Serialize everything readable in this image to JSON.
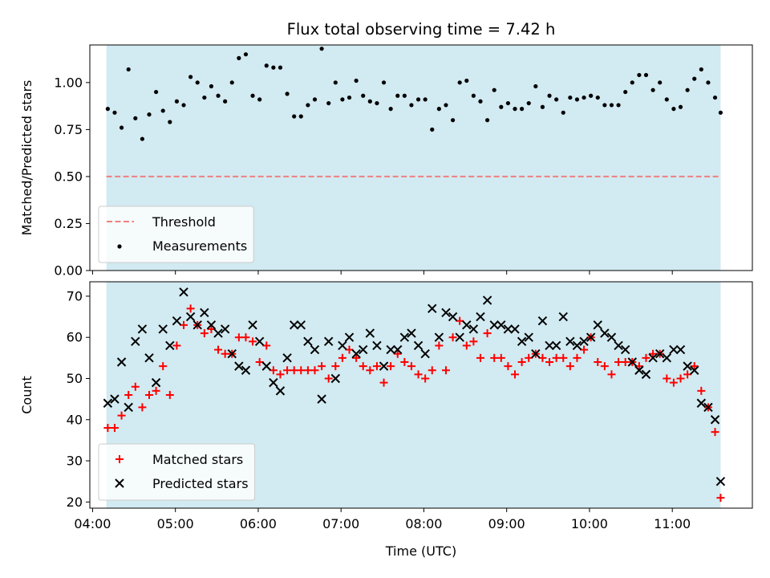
{
  "figure": {
    "title": "Flux total observing time = 7.42 h",
    "shaded_color": "#add8e6"
  },
  "chart_data": [
    {
      "type": "scatter",
      "panel": "top",
      "ylabel": "Matched/Predicted stars",
      "xlabel": "",
      "ylim": [
        0,
        1.2
      ],
      "yticks": [
        "0.00",
        "0.25",
        "0.50",
        "0.75",
        "1.00"
      ],
      "xlim": [
        "03:58",
        "11:58"
      ],
      "shaded_span": [
        "04:10",
        "11:35"
      ],
      "threshold": 0.5,
      "legend": {
        "position": "lower-left",
        "entries": [
          "Threshold",
          "Measurements"
        ]
      },
      "series": [
        {
          "name": "Threshold",
          "style": "dashed-line",
          "color": "#f08080"
        },
        {
          "name": "Measurements",
          "style": "dot",
          "color": "#000000",
          "x": [
            "04:11",
            "04:16",
            "04:21",
            "04:26",
            "04:31",
            "04:36",
            "04:41",
            "04:46",
            "04:51",
            "04:56",
            "05:01",
            "05:06",
            "05:11",
            "05:16",
            "05:21",
            "05:26",
            "05:31",
            "05:36",
            "05:41",
            "05:46",
            "05:51",
            "05:56",
            "06:01",
            "06:06",
            "06:11",
            "06:16",
            "06:21",
            "06:26",
            "06:31",
            "06:36",
            "06:41",
            "06:46",
            "06:51",
            "06:56",
            "07:01",
            "07:06",
            "07:11",
            "07:16",
            "07:21",
            "07:26",
            "07:31",
            "07:36",
            "07:41",
            "07:46",
            "07:51",
            "07:56",
            "08:01",
            "08:06",
            "08:11",
            "08:16",
            "08:21",
            "08:26",
            "08:31",
            "08:36",
            "08:41",
            "08:46",
            "08:51",
            "08:56",
            "09:01",
            "09:06",
            "09:11",
            "09:16",
            "09:21",
            "09:26",
            "09:31",
            "09:36",
            "09:41",
            "09:46",
            "09:51",
            "09:56",
            "10:01",
            "10:06",
            "10:11",
            "10:16",
            "10:21",
            "10:26",
            "10:31",
            "10:36",
            "10:41",
            "10:46",
            "10:51",
            "10:56",
            "11:01",
            "11:06",
            "11:11",
            "11:16",
            "11:21",
            "11:26",
            "11:31",
            "11:35"
          ],
          "values": [
            0.86,
            0.84,
            0.76,
            1.07,
            0.81,
            0.7,
            0.83,
            0.95,
            0.85,
            0.79,
            0.9,
            0.88,
            1.03,
            1.0,
            0.92,
            0.98,
            0.93,
            0.9,
            1.0,
            1.13,
            1.15,
            0.93,
            0.91,
            1.09,
            1.08,
            1.08,
            0.94,
            0.82,
            0.82,
            0.88,
            0.91,
            1.18,
            0.89,
            1.0,
            0.91,
            0.92,
            1.01,
            0.93,
            0.9,
            0.89,
            1.0,
            0.86,
            0.93,
            0.93,
            0.88,
            0.91,
            0.91,
            0.75,
            0.86,
            0.88,
            0.8,
            1.0,
            1.01,
            0.93,
            0.9,
            0.8,
            0.96,
            0.87,
            0.89,
            0.86,
            0.86,
            0.89,
            0.98,
            0.87,
            0.93,
            0.91,
            0.84,
            0.92,
            0.91,
            0.92,
            0.93,
            0.92,
            0.88,
            0.88,
            0.88,
            0.95,
            1.0,
            1.04,
            1.04,
            0.96,
            1.0,
            0.91,
            0.86,
            0.87,
            0.96,
            1.02,
            1.07,
            1.0,
            0.92,
            0.84
          ]
        }
      ]
    },
    {
      "type": "scatter",
      "panel": "bottom",
      "ylabel": "Count",
      "xlabel": "Time (UTC)",
      "ylim": [
        18.5,
        73.5
      ],
      "yticks": [
        "20",
        "30",
        "40",
        "50",
        "60",
        "70"
      ],
      "xlim": [
        "03:58",
        "11:58"
      ],
      "xticks": [
        "04:00",
        "05:00",
        "06:00",
        "07:00",
        "08:00",
        "09:00",
        "10:00",
        "11:00"
      ],
      "shaded_span": [
        "04:10",
        "11:35"
      ],
      "legend": {
        "position": "lower-left",
        "entries": [
          "Matched stars",
          "Predicted stars"
        ]
      },
      "series": [
        {
          "name": "Matched stars",
          "style": "plus",
          "color": "#ff0000",
          "x": [
            "04:11",
            "04:16",
            "04:21",
            "04:26",
            "04:31",
            "04:36",
            "04:41",
            "04:46",
            "04:51",
            "04:56",
            "05:01",
            "05:06",
            "05:11",
            "05:16",
            "05:21",
            "05:26",
            "05:31",
            "05:36",
            "05:41",
            "05:46",
            "05:51",
            "05:56",
            "06:01",
            "06:06",
            "06:11",
            "06:16",
            "06:21",
            "06:26",
            "06:31",
            "06:36",
            "06:41",
            "06:46",
            "06:51",
            "06:56",
            "07:01",
            "07:06",
            "07:11",
            "07:16",
            "07:21",
            "07:26",
            "07:31",
            "07:36",
            "07:41",
            "07:46",
            "07:51",
            "07:56",
            "08:01",
            "08:06",
            "08:11",
            "08:16",
            "08:21",
            "08:26",
            "08:31",
            "08:36",
            "08:41",
            "08:46",
            "08:51",
            "08:56",
            "09:01",
            "09:06",
            "09:11",
            "09:16",
            "09:21",
            "09:26",
            "09:31",
            "09:36",
            "09:41",
            "09:46",
            "09:51",
            "09:56",
            "10:01",
            "10:06",
            "10:11",
            "10:16",
            "10:21",
            "10:26",
            "10:31",
            "10:36",
            "10:41",
            "10:46",
            "10:51",
            "10:56",
            "11:01",
            "11:06",
            "11:11",
            "11:16",
            "11:21",
            "11:26",
            "11:31",
            "11:35"
          ],
          "values": [
            38,
            38,
            41,
            46,
            48,
            43,
            46,
            47,
            53,
            46,
            58,
            63,
            67,
            63,
            61,
            62,
            57,
            56,
            56,
            60,
            60,
            59,
            54,
            58,
            52,
            51,
            52,
            52,
            52,
            52,
            52,
            53,
            50,
            53,
            55,
            57,
            55,
            53,
            52,
            53,
            49,
            53,
            56,
            54,
            53,
            51,
            50,
            52,
            58,
            52,
            60,
            64,
            58,
            59,
            55,
            61,
            55,
            55,
            53,
            51,
            54,
            55,
            56,
            55,
            54,
            55,
            55,
            53,
            55,
            57,
            60,
            54,
            53,
            51,
            54,
            54,
            54,
            53,
            55,
            56,
            56,
            50,
            49,
            50,
            51,
            53,
            47,
            43,
            37,
            21
          ]
        },
        {
          "name": "Predicted stars",
          "style": "x",
          "color": "#000000",
          "x": [
            "04:11",
            "04:16",
            "04:21",
            "04:26",
            "04:31",
            "04:36",
            "04:41",
            "04:46",
            "04:51",
            "04:56",
            "05:01",
            "05:06",
            "05:11",
            "05:16",
            "05:21",
            "05:26",
            "05:31",
            "05:36",
            "05:41",
            "05:46",
            "05:51",
            "05:56",
            "06:01",
            "06:06",
            "06:11",
            "06:16",
            "06:21",
            "06:26",
            "06:31",
            "06:36",
            "06:41",
            "06:46",
            "06:51",
            "06:56",
            "07:01",
            "07:06",
            "07:11",
            "07:16",
            "07:21",
            "07:26",
            "07:31",
            "07:36",
            "07:41",
            "07:46",
            "07:51",
            "07:56",
            "08:01",
            "08:06",
            "08:11",
            "08:16",
            "08:21",
            "08:26",
            "08:31",
            "08:36",
            "08:41",
            "08:46",
            "08:51",
            "08:56",
            "09:01",
            "09:06",
            "09:11",
            "09:16",
            "09:21",
            "09:26",
            "09:31",
            "09:36",
            "09:41",
            "09:46",
            "09:51",
            "09:56",
            "10:01",
            "10:06",
            "10:11",
            "10:16",
            "10:21",
            "10:26",
            "10:31",
            "10:36",
            "10:41",
            "10:46",
            "10:51",
            "10:56",
            "11:01",
            "11:06",
            "11:11",
            "11:16",
            "11:21",
            "11:26",
            "11:31",
            "11:35"
          ],
          "values": [
            44,
            45,
            54,
            43,
            59,
            62,
            55,
            49,
            62,
            58,
            64,
            71,
            65,
            63,
            66,
            63,
            61,
            62,
            56,
            53,
            52,
            63,
            59,
            53,
            49,
            47,
            55,
            63,
            63,
            59,
            57,
            45,
            59,
            50,
            58,
            60,
            56,
            57,
            61,
            58,
            53,
            57,
            57,
            60,
            61,
            58,
            56,
            67,
            60,
            66,
            65,
            60,
            63,
            62,
            65,
            69,
            63,
            63,
            62,
            62,
            59,
            60,
            56,
            64,
            58,
            58,
            65,
            59,
            58,
            59,
            60,
            63,
            61,
            60,
            58,
            57,
            54,
            52,
            51,
            55,
            56,
            55,
            57,
            57,
            53,
            52,
            44,
            43,
            40,
            25
          ]
        }
      ]
    }
  ]
}
